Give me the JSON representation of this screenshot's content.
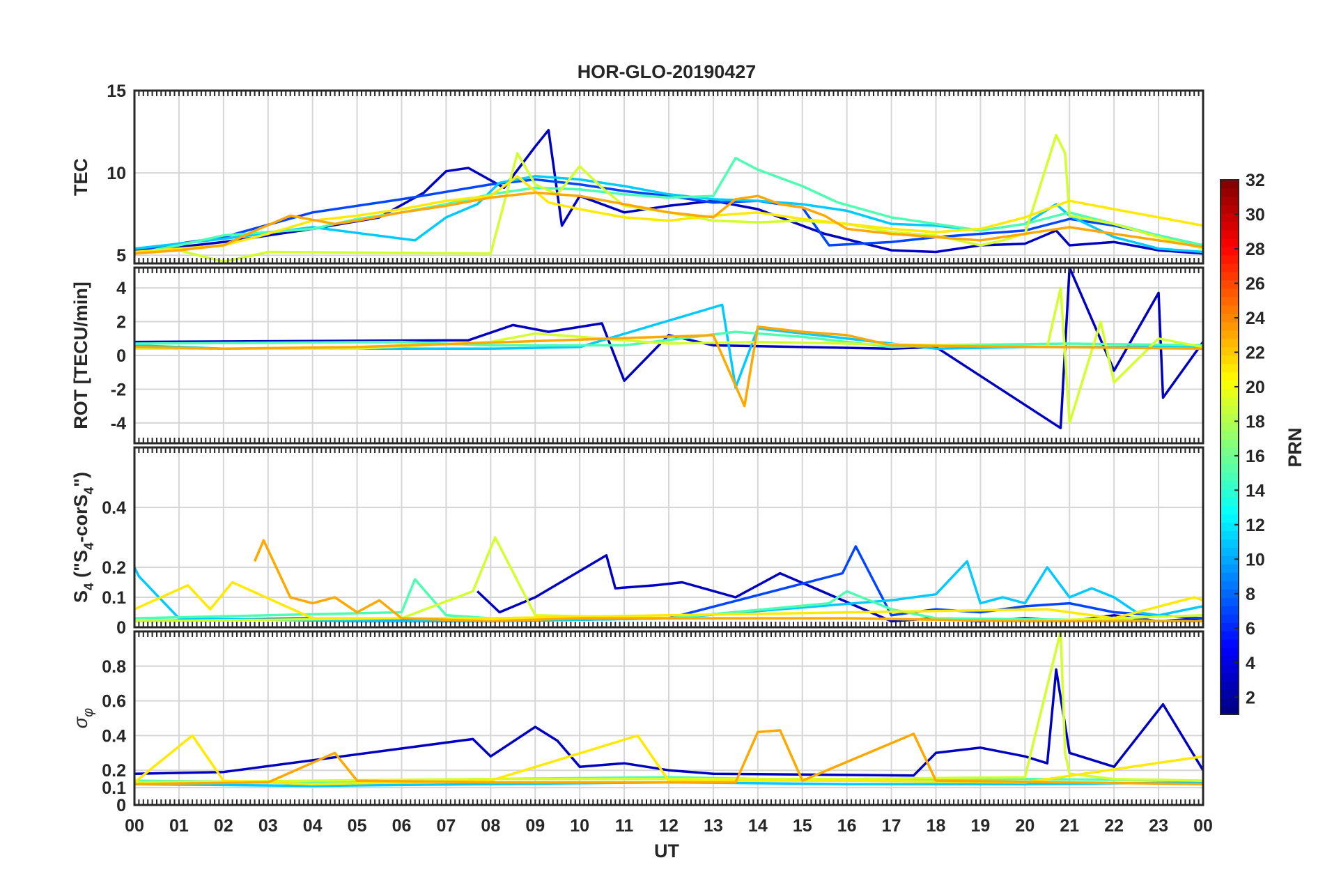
{
  "figure": {
    "title": "HOR-GLO-20190427",
    "xlabel": "UT",
    "x_tick_labels": [
      "00",
      "01",
      "02",
      "03",
      "04",
      "05",
      "06",
      "07",
      "08",
      "09",
      "10",
      "11",
      "12",
      "13",
      "14",
      "15",
      "16",
      "17",
      "18",
      "19",
      "20",
      "21",
      "22",
      "23",
      "00"
    ]
  },
  "colorbar": {
    "label": "PRN",
    "colormap": "jet",
    "range": [
      1,
      32
    ],
    "tick_labels": [
      "2",
      "4",
      "6",
      "8",
      "10",
      "12",
      "14",
      "16",
      "18",
      "20",
      "22",
      "24",
      "26",
      "28",
      "30",
      "32"
    ]
  },
  "chart_data": [
    {
      "type": "line",
      "panel": "tec",
      "ylabel": "TEC",
      "xlim": [
        0,
        24
      ],
      "ylim": [
        4.5,
        15
      ],
      "y_tick_labels": [
        "5",
        "10",
        "15"
      ],
      "grid": true,
      "series": [
        {
          "prn": 3,
          "x": [
            0,
            2,
            4,
            5.5,
            6.5,
            7,
            7.5,
            8.3,
            9,
            9.3,
            9.6,
            10,
            11,
            12,
            13,
            14,
            15.5,
            17,
            18,
            19,
            20,
            20.7,
            21,
            22,
            23,
            24
          ],
          "y": [
            5.2,
            5.8,
            6.6,
            7.3,
            8.8,
            10.1,
            10.3,
            9.1,
            11.6,
            12.6,
            6.8,
            8.6,
            7.6,
            8,
            8.3,
            7.8,
            6.3,
            5.3,
            5.2,
            5.6,
            5.7,
            6.5,
            5.6,
            5.8,
            5.3,
            5.1
          ]
        },
        {
          "prn": 7,
          "x": [
            0,
            2,
            4,
            6,
            8,
            9,
            10,
            11,
            12,
            13,
            14,
            15,
            15.6,
            17,
            18,
            19,
            20,
            21,
            22,
            23,
            24
          ],
          "y": [
            5.3,
            6.1,
            7.6,
            8.4,
            9.3,
            9.6,
            9.3,
            8.9,
            8.6,
            8.2,
            8.3,
            7.9,
            5.6,
            5.8,
            6.1,
            6.3,
            6.5,
            7.2,
            6.8,
            6.2,
            5.6
          ]
        },
        {
          "prn": 11,
          "x": [
            0,
            2,
            4,
            6.3,
            7,
            7.7,
            8.2,
            9,
            10,
            11,
            12,
            13,
            14,
            15,
            16,
            17,
            18,
            19,
            20,
            20.7,
            21,
            22,
            23,
            24
          ],
          "y": [
            5.4,
            6,
            6.7,
            5.9,
            7.3,
            8.1,
            9.4,
            9.8,
            9.6,
            9.2,
            8.7,
            8.4,
            8.3,
            8.1,
            7.7,
            6.9,
            6.8,
            6.5,
            6.9,
            8.1,
            7.4,
            6.1,
            5.4,
            5.2
          ]
        },
        {
          "prn": 15,
          "x": [
            0,
            1,
            2,
            3,
            4,
            5,
            6,
            7,
            8,
            9,
            10,
            11,
            12,
            13,
            13.5,
            14,
            15,
            15.8,
            17,
            18,
            19,
            20,
            21,
            22,
            23,
            24
          ],
          "y": [
            5.1,
            5.6,
            6.2,
            6.4,
            6.6,
            7.2,
            7.6,
            8.1,
            8.7,
            9.1,
            9,
            8.7,
            8.5,
            8.6,
            10.9,
            10.2,
            9.2,
            8.2,
            7.3,
            6.9,
            6.5,
            6.9,
            7.6,
            6.9,
            6.2,
            5.6
          ]
        },
        {
          "prn": 19,
          "x": [
            0,
            1,
            2,
            3,
            8,
            8.6,
            9,
            9.5,
            10,
            10.5,
            11,
            12,
            13,
            14,
            15,
            16,
            17,
            18,
            19,
            19.5,
            20,
            20.7,
            20.9,
            21,
            22,
            23,
            24
          ],
          "y": [
            5.1,
            5.3,
            4.6,
            5.2,
            5.1,
            11.2,
            9.3,
            8.7,
            10.4,
            9.1,
            8,
            7.6,
            7.1,
            7,
            7.1,
            6.9,
            6.4,
            6.2,
            5.6,
            5.9,
            6.3,
            12.3,
            11.2,
            7.4,
            6.9,
            6.1,
            5.4
          ]
        },
        {
          "prn": 21,
          "x": [
            0,
            2,
            3,
            4,
            5,
            6,
            7,
            8,
            8.6,
            9.3,
            10,
            11,
            12,
            13,
            14,
            15,
            16,
            17,
            18,
            19,
            20,
            21,
            22,
            23,
            24
          ],
          "y": [
            5.2,
            5.6,
            6.3,
            7.1,
            7.4,
            7.8,
            8.3,
            8.6,
            9.8,
            8.2,
            7.8,
            7.3,
            7.1,
            7.4,
            7.6,
            7.2,
            6.9,
            6.6,
            6.4,
            6.6,
            7.3,
            8.3,
            7.8,
            7.3,
            6.8
          ]
        },
        {
          "prn": 23,
          "x": [
            0,
            1,
            2,
            2.8,
            3.5,
            4.5,
            5,
            6,
            7,
            8,
            9,
            10,
            11,
            12,
            13,
            13.5,
            14,
            14.5,
            15,
            15.5,
            16,
            17,
            18,
            19,
            20,
            21,
            22,
            23,
            24
          ],
          "y": [
            5.1,
            5.3,
            5.6,
            6.6,
            7.4,
            6.9,
            7.1,
            7.6,
            8,
            8.5,
            8.8,
            8.6,
            8.1,
            7.6,
            7.3,
            8.4,
            8.6,
            8.1,
            7.9,
            7.4,
            6.6,
            6.3,
            6.1,
            5.9,
            6.3,
            6.7,
            6.3,
            5.9,
            5.5
          ]
        }
      ]
    },
    {
      "type": "line",
      "panel": "rot",
      "ylabel": "ROT [TECU/min]",
      "xlim": [
        0,
        24
      ],
      "ylim": [
        -5.2,
        5.2
      ],
      "y_tick_labels": [
        "-4",
        "-2",
        "0",
        "2",
        "4"
      ],
      "grid": true,
      "series": [
        {
          "prn": 3,
          "x": [
            0,
            7.5,
            8.5,
            9.3,
            10.5,
            11,
            12,
            13,
            17,
            18,
            20.8,
            21,
            22,
            23,
            23.1,
            24
          ],
          "y": [
            0.8,
            0.9,
            1.8,
            1.4,
            1.9,
            -1.5,
            1.2,
            0.6,
            0.4,
            0.5,
            -4.3,
            5.2,
            -0.9,
            3.7,
            -2.5,
            0.8
          ]
        },
        {
          "prn": 11,
          "x": [
            0,
            2,
            8,
            10,
            13.2,
            13.5,
            14,
            18,
            20,
            24
          ],
          "y": [
            0.6,
            0.4,
            0.4,
            0.5,
            3,
            -1.9,
            1.6,
            0.4,
            0.5,
            0.5
          ]
        },
        {
          "prn": 15,
          "x": [
            0,
            6,
            8,
            11,
            13.5,
            15,
            17,
            18,
            21,
            24
          ],
          "y": [
            0.7,
            0.8,
            0.6,
            0.6,
            1.4,
            1.1,
            0.5,
            0.6,
            0.7,
            0.6
          ]
        },
        {
          "prn": 19,
          "x": [
            0,
            5,
            8,
            9,
            10,
            11,
            12,
            14,
            16,
            20.5,
            20.8,
            21,
            21.7,
            22,
            23,
            24
          ],
          "y": [
            0.4,
            0.4,
            0.8,
            1.3,
            1.1,
            0.9,
            0.7,
            0.8,
            0.7,
            0.5,
            4,
            -4,
            2,
            -1.6,
            1,
            0.5
          ]
        },
        {
          "prn": 23,
          "x": [
            0,
            2,
            5,
            13,
            13.7,
            14,
            15,
            16,
            17,
            24
          ],
          "y": [
            0.5,
            0.4,
            0.5,
            1.2,
            -3,
            1.7,
            1.4,
            1.2,
            0.6,
            0.4
          ]
        }
      ]
    },
    {
      "type": "line",
      "panel": "s4",
      "ylabel": "S4 (\"S4-corS4\")",
      "xlim": [
        0,
        24
      ],
      "ylim": [
        0,
        0.6
      ],
      "y_tick_labels": [
        "0",
        "0.1",
        "0.2",
        "0.4"
      ],
      "grid": true,
      "series": [
        {
          "prn": 3,
          "x": [
            7.7,
            8.2,
            9,
            10.6,
            10.8,
            11.7,
            12.3,
            13.5,
            14.5,
            17,
            18,
            19,
            20,
            21,
            22,
            23,
            24
          ],
          "y": [
            0.12,
            0.05,
            0.1,
            0.24,
            0.13,
            0.14,
            0.15,
            0.1,
            0.18,
            0.02,
            0.03,
            0.02,
            0.03,
            0.02,
            0.04,
            0.02,
            0.03
          ]
        },
        {
          "prn": 7,
          "x": [
            0,
            4,
            8,
            12,
            15.9,
            16.2,
            17,
            18,
            19,
            20,
            21,
            22,
            24
          ],
          "y": [
            0.02,
            0.03,
            0.02,
            0.03,
            0.18,
            0.27,
            0.04,
            0.06,
            0.05,
            0.07,
            0.08,
            0.05,
            0.03
          ]
        },
        {
          "prn": 11,
          "x": [
            0,
            0.1,
            1,
            5,
            8,
            12,
            17,
            18,
            18.7,
            19,
            19.5,
            20,
            20.5,
            21,
            21.5,
            22,
            22.5,
            23,
            24
          ],
          "y": [
            0.2,
            0.17,
            0.03,
            0.02,
            0.02,
            0.03,
            0.09,
            0.11,
            0.22,
            0.08,
            0.1,
            0.08,
            0.2,
            0.1,
            0.13,
            0.1,
            0.05,
            0.04,
            0.07
          ]
        },
        {
          "prn": 15,
          "x": [
            0,
            3,
            6,
            6.3,
            7,
            8,
            12,
            15.6,
            16,
            17,
            18,
            24
          ],
          "y": [
            0.03,
            0.04,
            0.05,
            0.16,
            0.04,
            0.03,
            0.03,
            0.08,
            0.12,
            0.06,
            0.03,
            0.02
          ]
        },
        {
          "prn": 19,
          "x": [
            0,
            6,
            7.6,
            8.1,
            9,
            12,
            16,
            20,
            24
          ],
          "y": [
            0.02,
            0.03,
            0.12,
            0.3,
            0.04,
            0.03,
            0.03,
            0.02,
            0.04
          ]
        },
        {
          "prn": 21,
          "x": [
            0,
            1.2,
            1.7,
            2.2,
            4,
            8,
            12,
            20.5,
            22,
            23.8,
            24
          ],
          "y": [
            0.06,
            0.14,
            0.06,
            0.15,
            0.03,
            0.03,
            0.04,
            0.06,
            0.03,
            0.1,
            0.09
          ]
        },
        {
          "prn": 23,
          "x": [
            2.7,
            2.9,
            3.5,
            4,
            4.5,
            5,
            5.5,
            6,
            8,
            10,
            12,
            16,
            20,
            24
          ],
          "y": [
            0.22,
            0.29,
            0.1,
            0.08,
            0.1,
            0.05,
            0.09,
            0.03,
            0.02,
            0.03,
            0.03,
            0.03,
            0.02,
            0.02
          ]
        }
      ]
    },
    {
      "type": "line",
      "panel": "sigma_phi",
      "ylabel": "σφ",
      "xlim": [
        0,
        24
      ],
      "ylim": [
        0,
        1
      ],
      "y_tick_labels": [
        "0",
        "0.1",
        "0.2",
        "0.4",
        "0.6",
        "0.8"
      ],
      "grid": true,
      "series": [
        {
          "prn": 3,
          "x": [
            0,
            2,
            7.6,
            8,
            9,
            9.5,
            10,
            11,
            12,
            13,
            17.5,
            18,
            19,
            20,
            20.5,
            20.7,
            21,
            22,
            23.1,
            24
          ],
          "y": [
            0.18,
            0.19,
            0.38,
            0.28,
            0.45,
            0.37,
            0.22,
            0.24,
            0.2,
            0.18,
            0.17,
            0.3,
            0.33,
            0.28,
            0.24,
            0.78,
            0.3,
            0.22,
            0.58,
            0.2
          ]
        },
        {
          "prn": 11,
          "x": [
            0,
            4,
            8,
            12,
            16,
            20,
            24
          ],
          "y": [
            0.12,
            0.11,
            0.12,
            0.13,
            0.12,
            0.12,
            0.13
          ]
        },
        {
          "prn": 15,
          "x": [
            0,
            4,
            8,
            12,
            16,
            20,
            24
          ],
          "y": [
            0.14,
            0.13,
            0.15,
            0.16,
            0.14,
            0.15,
            0.14
          ]
        },
        {
          "prn": 19,
          "x": [
            0,
            4,
            8,
            12,
            16,
            20,
            20.8,
            20.9,
            21,
            22,
            24
          ],
          "y": [
            0.13,
            0.14,
            0.15,
            0.15,
            0.15,
            0.16,
            1,
            0.3,
            0.18,
            0.15,
            0.14
          ]
        },
        {
          "prn": 21,
          "x": [
            0,
            1.3,
            2,
            4,
            8,
            11.3,
            12,
            16,
            20,
            24
          ],
          "y": [
            0.13,
            0.4,
            0.14,
            0.12,
            0.14,
            0.4,
            0.14,
            0.14,
            0.13,
            0.28
          ]
        },
        {
          "prn": 23,
          "x": [
            0,
            3,
            4.5,
            5,
            8,
            13.5,
            14,
            14.5,
            15,
            17.5,
            18,
            24
          ],
          "y": [
            0.12,
            0.13,
            0.3,
            0.14,
            0.13,
            0.13,
            0.42,
            0.43,
            0.14,
            0.41,
            0.14,
            0.12
          ]
        }
      ]
    }
  ]
}
